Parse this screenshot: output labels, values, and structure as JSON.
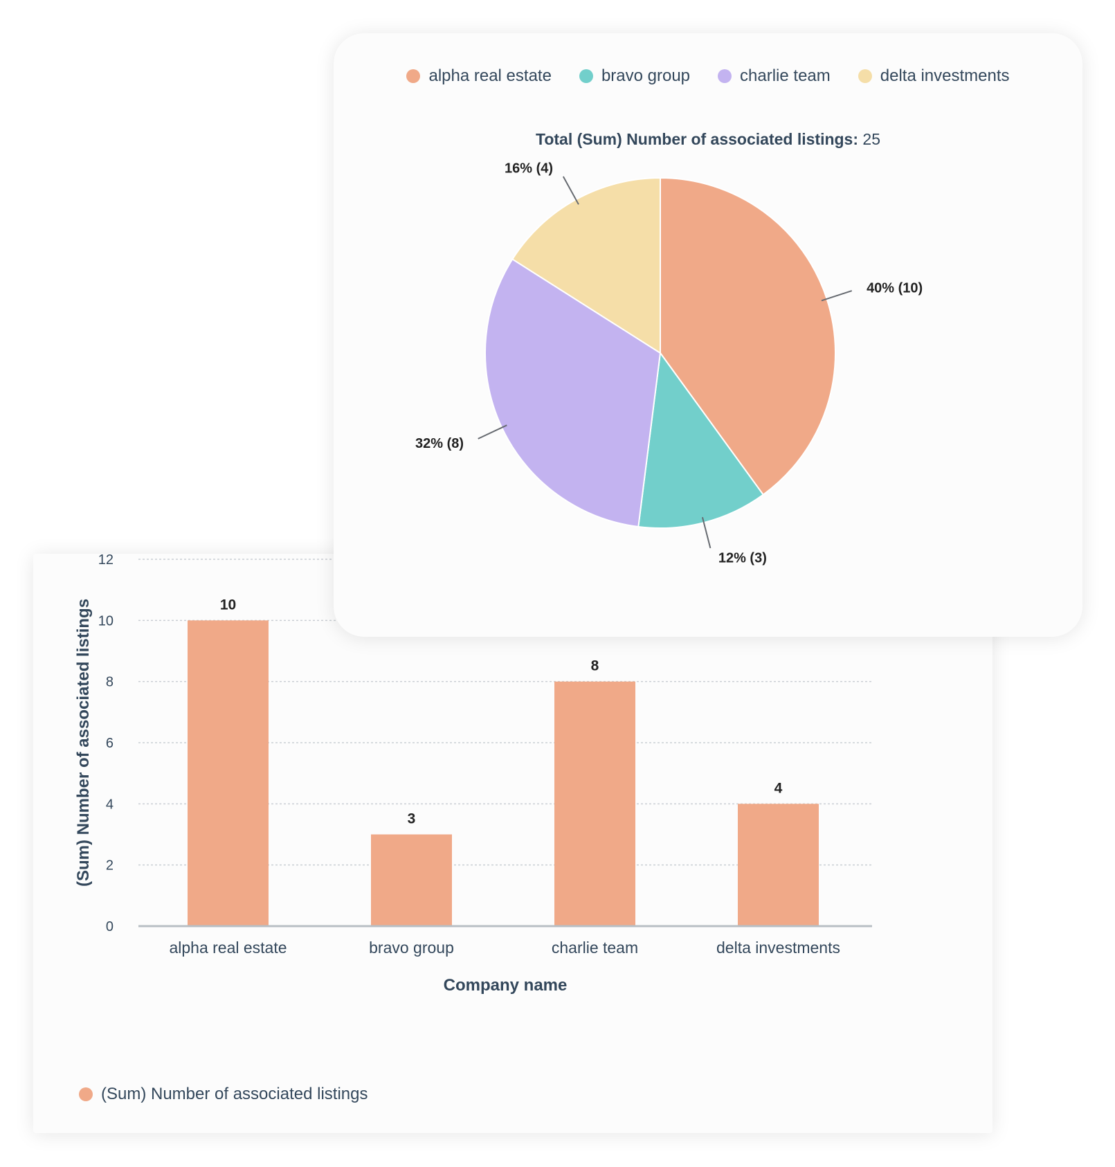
{
  "chart_data": [
    {
      "type": "pie",
      "categories": [
        "alpha real estate",
        "bravo group",
        "charlie team",
        "delta investments"
      ],
      "values": [
        10,
        3,
        8,
        4
      ],
      "labels": [
        "40% (10)",
        "12% (3)",
        "32% (8)",
        "16% (4)"
      ],
      "colors": [
        "#f0a988",
        "#72cfcb",
        "#c3b3f0",
        "#f5dea8"
      ],
      "total_label": "Total (Sum) Number of associated listings:",
      "total_value": "25",
      "legend": [
        "alpha real estate",
        "bravo group",
        "charlie team",
        "delta investments"
      ],
      "legend_position": "top"
    },
    {
      "type": "bar",
      "categories": [
        "alpha real estate",
        "bravo group",
        "charlie team",
        "delta investments"
      ],
      "series": [
        {
          "name": "(Sum) Number of associated listings",
          "values": [
            10,
            3,
            8,
            4
          ],
          "color": "#f0a988"
        }
      ],
      "data_labels": [
        "10",
        "3",
        "8",
        "4"
      ],
      "xlabel": "Company name",
      "ylabel": "(Sum) Number of associated listings",
      "ylim": [
        0,
        12
      ],
      "yticks": [
        "0",
        "2",
        "4",
        "6",
        "8",
        "10",
        "12"
      ],
      "grid": true,
      "legend_position": "bottom-left"
    }
  ]
}
